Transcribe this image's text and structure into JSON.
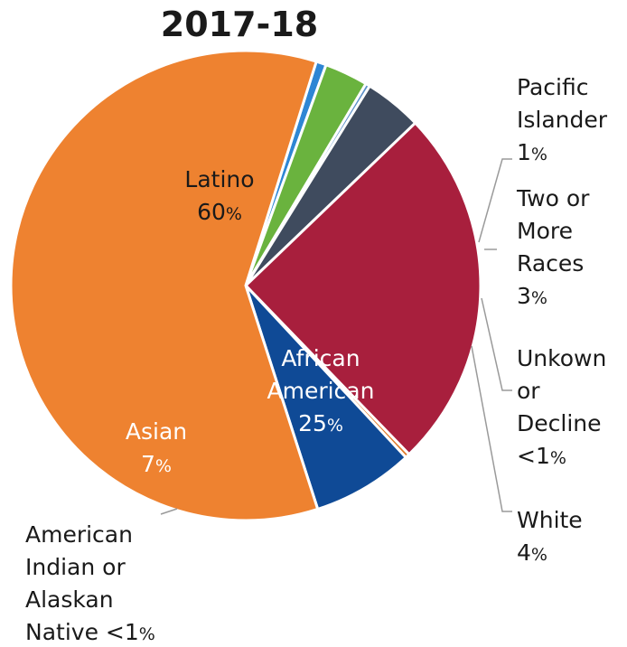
{
  "chart_data": {
    "type": "pie",
    "title": "2017-18",
    "slices": [
      {
        "label_lines": [
          "Pacific",
          "Islander"
        ],
        "value_text": "1",
        "value": 0.7,
        "color": "#2e86d4"
      },
      {
        "label_lines": [
          "Two or",
          "More",
          "Races"
        ],
        "value_text": "3",
        "value": 3,
        "color": "#6ab33e"
      },
      {
        "label_lines": [
          "Unkown",
          "or",
          "Decline"
        ],
        "value_text": "<1",
        "value": 0.3,
        "color": "#5b8fc9"
      },
      {
        "label_lines": [
          "White"
        ],
        "value_text": "4",
        "value": 4,
        "color": "#3f4b5e"
      },
      {
        "label_lines": [
          "African",
          "American"
        ],
        "value_text": "25",
        "value": 25,
        "color": "#a81f3d"
      },
      {
        "label_lines": [
          "American",
          "Indian or",
          "Alaskan",
          "Native"
        ],
        "value_text": "<1",
        "value": 0.3,
        "color": "#e07a2a"
      },
      {
        "label_lines": [
          "Asian"
        ],
        "value_text": "7",
        "value": 7,
        "color": "#0f4a96"
      },
      {
        "label_lines": [
          "Latino"
        ],
        "value_text": "60",
        "value": 60,
        "color": "#ee8230"
      }
    ],
    "percent_sign": "%"
  }
}
